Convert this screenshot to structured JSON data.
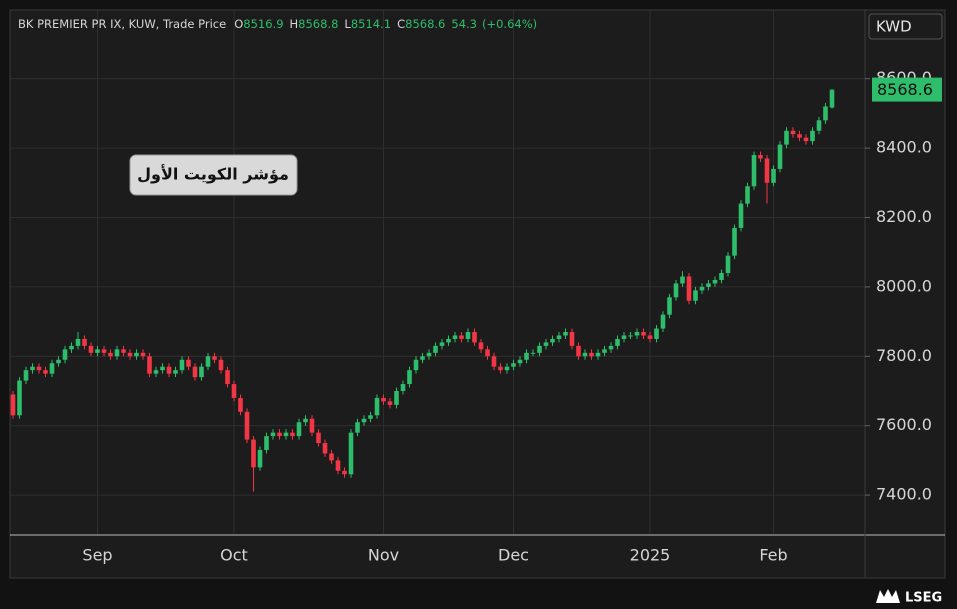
{
  "chart_data": {
    "type": "candlestick",
    "title": "BK PREMIER PR IX, KUW, Trade Price",
    "ohlc_labels": [
      "O",
      "H",
      "L",
      "C"
    ],
    "change": 54.3,
    "change_pct_label": "(+0.64%)",
    "currency": "KWD",
    "annotation": "مؤشر الكويت الأول",
    "brand": "LSEG",
    "up_color": "#2ebd6b",
    "down_color": "#f23645",
    "grid": true,
    "ylim": [
      7285,
      8798
    ],
    "yticks": [
      {
        "value": 7400,
        "label": "7400.0"
      },
      {
        "value": 7600,
        "label": "7600.0"
      },
      {
        "value": 7800,
        "label": "7800.0"
      },
      {
        "value": 8000,
        "label": "8000.0"
      },
      {
        "value": 8200,
        "label": "8200.0"
      },
      {
        "value": 8400,
        "label": "8400.0"
      },
      {
        "value": 8600,
        "label": "8600.0"
      }
    ],
    "categories": [
      null,
      null,
      null,
      null,
      null,
      null,
      null,
      null,
      null,
      null,
      null,
      null,
      null,
      "Sep",
      null,
      null,
      null,
      null,
      null,
      null,
      null,
      null,
      null,
      null,
      null,
      null,
      null,
      null,
      null,
      null,
      null,
      null,
      null,
      null,
      "Oct",
      null,
      null,
      null,
      null,
      null,
      null,
      null,
      null,
      null,
      null,
      null,
      null,
      null,
      null,
      null,
      null,
      null,
      null,
      null,
      null,
      null,
      null,
      "Nov",
      null,
      null,
      null,
      null,
      null,
      null,
      null,
      null,
      null,
      null,
      null,
      null,
      null,
      null,
      null,
      null,
      null,
      null,
      null,
      "Dec",
      null,
      null,
      null,
      null,
      null,
      null,
      null,
      null,
      null,
      null,
      null,
      null,
      null,
      null,
      null,
      null,
      null,
      null,
      null,
      null,
      "2025",
      null,
      null,
      null,
      null,
      null,
      null,
      null,
      null,
      null,
      null,
      null,
      null,
      null,
      null,
      null,
      null,
      null,
      null,
      "Feb",
      null,
      null,
      null,
      null,
      null,
      null,
      null,
      null,
      null
    ],
    "open": [
      7690,
      7630,
      7730,
      7760,
      7770,
      7760,
      7750,
      7780,
      7790,
      7820,
      7830,
      7850,
      7830,
      7810,
      7820,
      7810,
      7800,
      7820,
      7810,
      7800,
      7810,
      7800,
      7750,
      7760,
      7770,
      7750,
      7760,
      7790,
      7770,
      7740,
      7770,
      7800,
      7790,
      7760,
      7720,
      7680,
      7640,
      7560,
      7480,
      7530,
      7570,
      7580,
      7570,
      7580,
      7570,
      7610,
      7620,
      7580,
      7550,
      7520,
      7500,
      7470,
      7460,
      7580,
      7610,
      7620,
      7630,
      7680,
      7670,
      7660,
      7700,
      7720,
      7760,
      7790,
      7800,
      7810,
      7830,
      7840,
      7850,
      7860,
      7850,
      7870,
      7840,
      7820,
      7800,
      7770,
      7760,
      7770,
      7780,
      7790,
      7810,
      7810,
      7830,
      7840,
      7850,
      7860,
      7870,
      7830,
      7800,
      7810,
      7800,
      7810,
      7820,
      7830,
      7850,
      7860,
      7860,
      7870,
      7860,
      7850,
      7880,
      7920,
      7970,
      8010,
      8030,
      7960,
      7990,
      8000,
      8010,
      8020,
      8040,
      8090,
      8170,
      8240,
      8290,
      8380,
      8370,
      8300,
      8340,
      8410,
      8450,
      8440,
      8430,
      8420,
      8450,
      8480,
      8516.9
    ],
    "high": [
      7700,
      7740,
      7770,
      7780,
      7780,
      7770,
      7790,
      7800,
      7830,
      7840,
      7870,
      7860,
      7840,
      7830,
      7830,
      7820,
      7830,
      7830,
      7820,
      7820,
      7820,
      7810,
      7770,
      7780,
      7780,
      7770,
      7800,
      7800,
      7780,
      7780,
      7810,
      7810,
      7800,
      7770,
      7730,
      7690,
      7650,
      7570,
      7540,
      7580,
      7590,
      7590,
      7590,
      7590,
      7620,
      7630,
      7630,
      7590,
      7560,
      7530,
      7510,
      7480,
      7590,
      7620,
      7630,
      7640,
      7690,
      7690,
      7680,
      7710,
      7730,
      7770,
      7800,
      7810,
      7820,
      7840,
      7850,
      7860,
      7870,
      7870,
      7880,
      7880,
      7850,
      7830,
      7810,
      7780,
      7780,
      7790,
      7800,
      7820,
      7820,
      7840,
      7850,
      7860,
      7870,
      7880,
      7880,
      7840,
      7820,
      7820,
      7820,
      7830,
      7840,
      7860,
      7870,
      7870,
      7880,
      7880,
      7870,
      7890,
      7930,
      7980,
      8020,
      8045,
      8040,
      8000,
      8010,
      8020,
      8030,
      8050,
      8100,
      8180,
      8250,
      8300,
      8390,
      8390,
      8380,
      8350,
      8420,
      8460,
      8460,
      8450,
      8440,
      8460,
      8490,
      8530,
      8568.8
    ],
    "low": [
      7620,
      7620,
      7720,
      7750,
      7750,
      7740,
      7740,
      7770,
      7780,
      7810,
      7820,
      7820,
      7800,
      7800,
      7800,
      7790,
      7790,
      7800,
      7790,
      7790,
      7790,
      7740,
      7740,
      7750,
      7740,
      7740,
      7750,
      7760,
      7730,
      7730,
      7760,
      7780,
      7750,
      7710,
      7670,
      7630,
      7550,
      7410,
      7470,
      7520,
      7560,
      7560,
      7560,
      7560,
      7560,
      7600,
      7570,
      7540,
      7510,
      7490,
      7460,
      7450,
      7450,
      7570,
      7600,
      7610,
      7620,
      7660,
      7650,
      7650,
      7690,
      7710,
      7750,
      7780,
      7790,
      7800,
      7820,
      7830,
      7840,
      7840,
      7840,
      7830,
      7810,
      7790,
      7760,
      7750,
      7750,
      7760,
      7770,
      7780,
      7800,
      7800,
      7820,
      7830,
      7840,
      7850,
      7820,
      7790,
      7790,
      7790,
      7790,
      7800,
      7810,
      7820,
      7840,
      7850,
      7850,
      7850,
      7840,
      7840,
      7870,
      7910,
      7960,
      8000,
      7950,
      7950,
      7980,
      7990,
      8000,
      8010,
      8030,
      8080,
      8160,
      8230,
      8280,
      8360,
      8240,
      8290,
      8330,
      8400,
      8430,
      8420,
      8410,
      8410,
      8440,
      8470,
      8514.1
    ],
    "close": [
      7630,
      7730,
      7760,
      7770,
      7760,
      7750,
      7780,
      7790,
      7820,
      7830,
      7850,
      7830,
      7810,
      7820,
      7810,
      7800,
      7820,
      7810,
      7800,
      7810,
      7800,
      7750,
      7760,
      7770,
      7750,
      7760,
      7790,
      7770,
      7740,
      7770,
      7800,
      7790,
      7760,
      7720,
      7680,
      7640,
      7560,
      7480,
      7530,
      7570,
      7580,
      7570,
      7580,
      7570,
      7610,
      7620,
      7580,
      7550,
      7520,
      7500,
      7470,
      7460,
      7580,
      7610,
      7620,
      7630,
      7680,
      7670,
      7660,
      7700,
      7720,
      7760,
      7790,
      7800,
      7810,
      7830,
      7840,
      7850,
      7860,
      7850,
      7870,
      7840,
      7820,
      7800,
      7770,
      7760,
      7770,
      7780,
      7790,
      7810,
      7810,
      7830,
      7840,
      7850,
      7860,
      7870,
      7830,
      7800,
      7810,
      7800,
      7810,
      7820,
      7830,
      7850,
      7860,
      7860,
      7870,
      7860,
      7850,
      7880,
      7920,
      7970,
      8010,
      8030,
      7960,
      7990,
      8000,
      8010,
      8020,
      8040,
      8090,
      8170,
      8240,
      8290,
      8380,
      8370,
      8300,
      8340,
      8410,
      8450,
      8440,
      8430,
      8420,
      8450,
      8480,
      8520,
      8568.6
    ]
  }
}
